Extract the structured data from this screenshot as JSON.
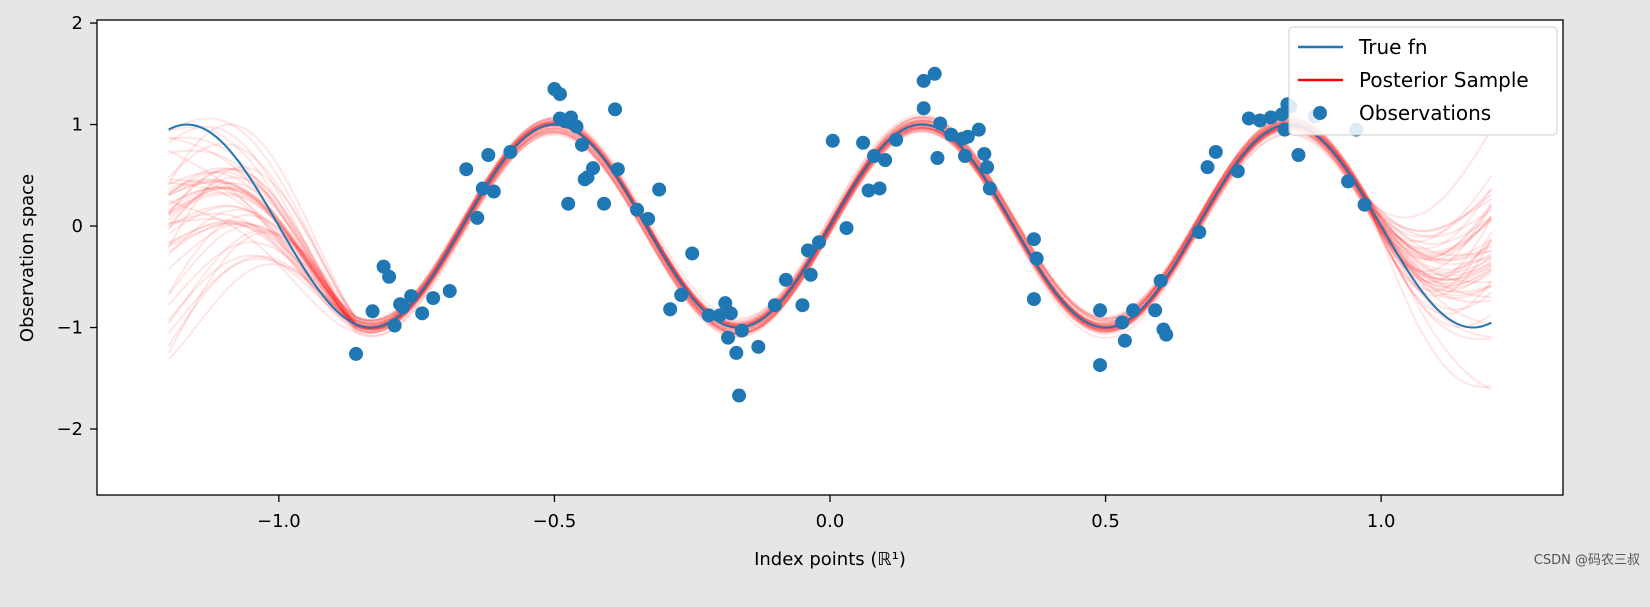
{
  "chart_data": {
    "type": "line",
    "title": "",
    "xlabel": "Index points (ℝ¹)",
    "ylabel": "Observation space",
    "xlim": [
      -1.33,
      1.33
    ],
    "ylim": [
      -2.65,
      2.03
    ],
    "x_ticks": [
      -1.0,
      -0.5,
      0.0,
      0.5,
      1.0
    ],
    "x_tick_labels": [
      "−1.0",
      "−0.5",
      "0.0",
      "0.5",
      "1.0"
    ],
    "y_ticks": [
      -2,
      -1,
      0,
      1,
      2
    ],
    "y_tick_labels": [
      "−2",
      "−1",
      "0",
      "1",
      "2"
    ],
    "grid": false,
    "legend_position": "top-right",
    "series": [
      {
        "name": "True fn",
        "kind": "line",
        "color": "#1f77b4",
        "function": "sin(3*pi*x)",
        "x_range": [
          -1.2,
          1.2
        ]
      },
      {
        "name": "Posterior Sample",
        "kind": "line",
        "color": "#ff0000",
        "alpha": 0.1,
        "sample_count": 50,
        "x_range": [
          -1.2,
          1.2
        ]
      },
      {
        "name": "Observations",
        "kind": "scatter",
        "color": "#1f77b4",
        "points": [
          [
            -0.86,
            -1.26
          ],
          [
            -0.83,
            -0.84
          ],
          [
            -0.81,
            -0.4
          ],
          [
            -0.8,
            -0.5
          ],
          [
            -0.79,
            -0.98
          ],
          [
            -0.78,
            -0.77
          ],
          [
            -0.775,
            -0.8
          ],
          [
            -0.76,
            -0.69
          ],
          [
            -0.74,
            -0.86
          ],
          [
            -0.72,
            -0.71
          ],
          [
            -0.69,
            -0.64
          ],
          [
            -0.66,
            0.56
          ],
          [
            -0.64,
            0.08
          ],
          [
            -0.63,
            0.37
          ],
          [
            -0.62,
            0.7
          ],
          [
            -0.61,
            0.34
          ],
          [
            -0.58,
            0.73
          ],
          [
            -0.5,
            1.35
          ],
          [
            -0.49,
            1.3
          ],
          [
            -0.49,
            1.06
          ],
          [
            -0.48,
            1.03
          ],
          [
            -0.475,
            0.22
          ],
          [
            -0.47,
            1.07
          ],
          [
            -0.46,
            0.98
          ],
          [
            -0.45,
            0.8
          ],
          [
            -0.445,
            0.46
          ],
          [
            -0.44,
            0.48
          ],
          [
            -0.43,
            0.57
          ],
          [
            -0.41,
            0.22
          ],
          [
            -0.39,
            1.15
          ],
          [
            -0.385,
            0.56
          ],
          [
            -0.35,
            0.16
          ],
          [
            -0.33,
            0.07
          ],
          [
            -0.31,
            0.36
          ],
          [
            -0.29,
            -0.82
          ],
          [
            -0.27,
            -0.68
          ],
          [
            -0.25,
            -0.27
          ],
          [
            -0.22,
            -0.88
          ],
          [
            -0.2,
            -0.88
          ],
          [
            -0.19,
            -0.76
          ],
          [
            -0.185,
            -1.1
          ],
          [
            -0.18,
            -0.86
          ],
          [
            -0.17,
            -1.25
          ],
          [
            -0.16,
            -1.03
          ],
          [
            -0.165,
            -1.67
          ],
          [
            -0.13,
            -1.19
          ],
          [
            -0.1,
            -0.78
          ],
          [
            -0.08,
            -0.53
          ],
          [
            -0.05,
            -0.78
          ],
          [
            -0.04,
            -0.24
          ],
          [
            -0.035,
            -0.48
          ],
          [
            -0.02,
            -0.16
          ],
          [
            0.005,
            0.84
          ],
          [
            0.03,
            -0.02
          ],
          [
            0.06,
            0.82
          ],
          [
            0.07,
            0.35
          ],
          [
            0.08,
            0.69
          ],
          [
            0.09,
            0.37
          ],
          [
            0.1,
            0.65
          ],
          [
            0.12,
            0.85
          ],
          [
            0.17,
            1.43
          ],
          [
            0.17,
            1.16
          ],
          [
            0.19,
            1.5
          ],
          [
            0.195,
            0.67
          ],
          [
            0.2,
            1.01
          ],
          [
            0.22,
            0.9
          ],
          [
            0.24,
            0.86
          ],
          [
            0.245,
            0.69
          ],
          [
            0.25,
            0.88
          ],
          [
            0.27,
            0.95
          ],
          [
            0.28,
            0.71
          ],
          [
            0.285,
            0.58
          ],
          [
            0.29,
            0.37
          ],
          [
            0.37,
            -0.72
          ],
          [
            0.37,
            -0.13
          ],
          [
            0.375,
            -0.32
          ],
          [
            0.49,
            -0.83
          ],
          [
            0.49,
            -1.37
          ],
          [
            0.53,
            -0.95
          ],
          [
            0.535,
            -1.13
          ],
          [
            0.55,
            -0.83
          ],
          [
            0.59,
            -0.83
          ],
          [
            0.6,
            -0.54
          ],
          [
            0.605,
            -1.02
          ],
          [
            0.61,
            -1.07
          ],
          [
            0.67,
            -0.06
          ],
          [
            0.685,
            0.58
          ],
          [
            0.7,
            0.73
          ],
          [
            0.74,
            0.54
          ],
          [
            0.76,
            1.06
          ],
          [
            0.78,
            1.04
          ],
          [
            0.8,
            1.07
          ],
          [
            0.82,
            1.1
          ],
          [
            0.825,
            0.95
          ],
          [
            0.83,
            1.2
          ],
          [
            0.835,
            1.18
          ],
          [
            0.85,
            0.7
          ],
          [
            0.88,
            1.08
          ],
          [
            0.94,
            0.44
          ],
          [
            0.955,
            0.95
          ],
          [
            0.97,
            0.21
          ]
        ]
      }
    ]
  },
  "watermark": "CSDN @码农三叔"
}
